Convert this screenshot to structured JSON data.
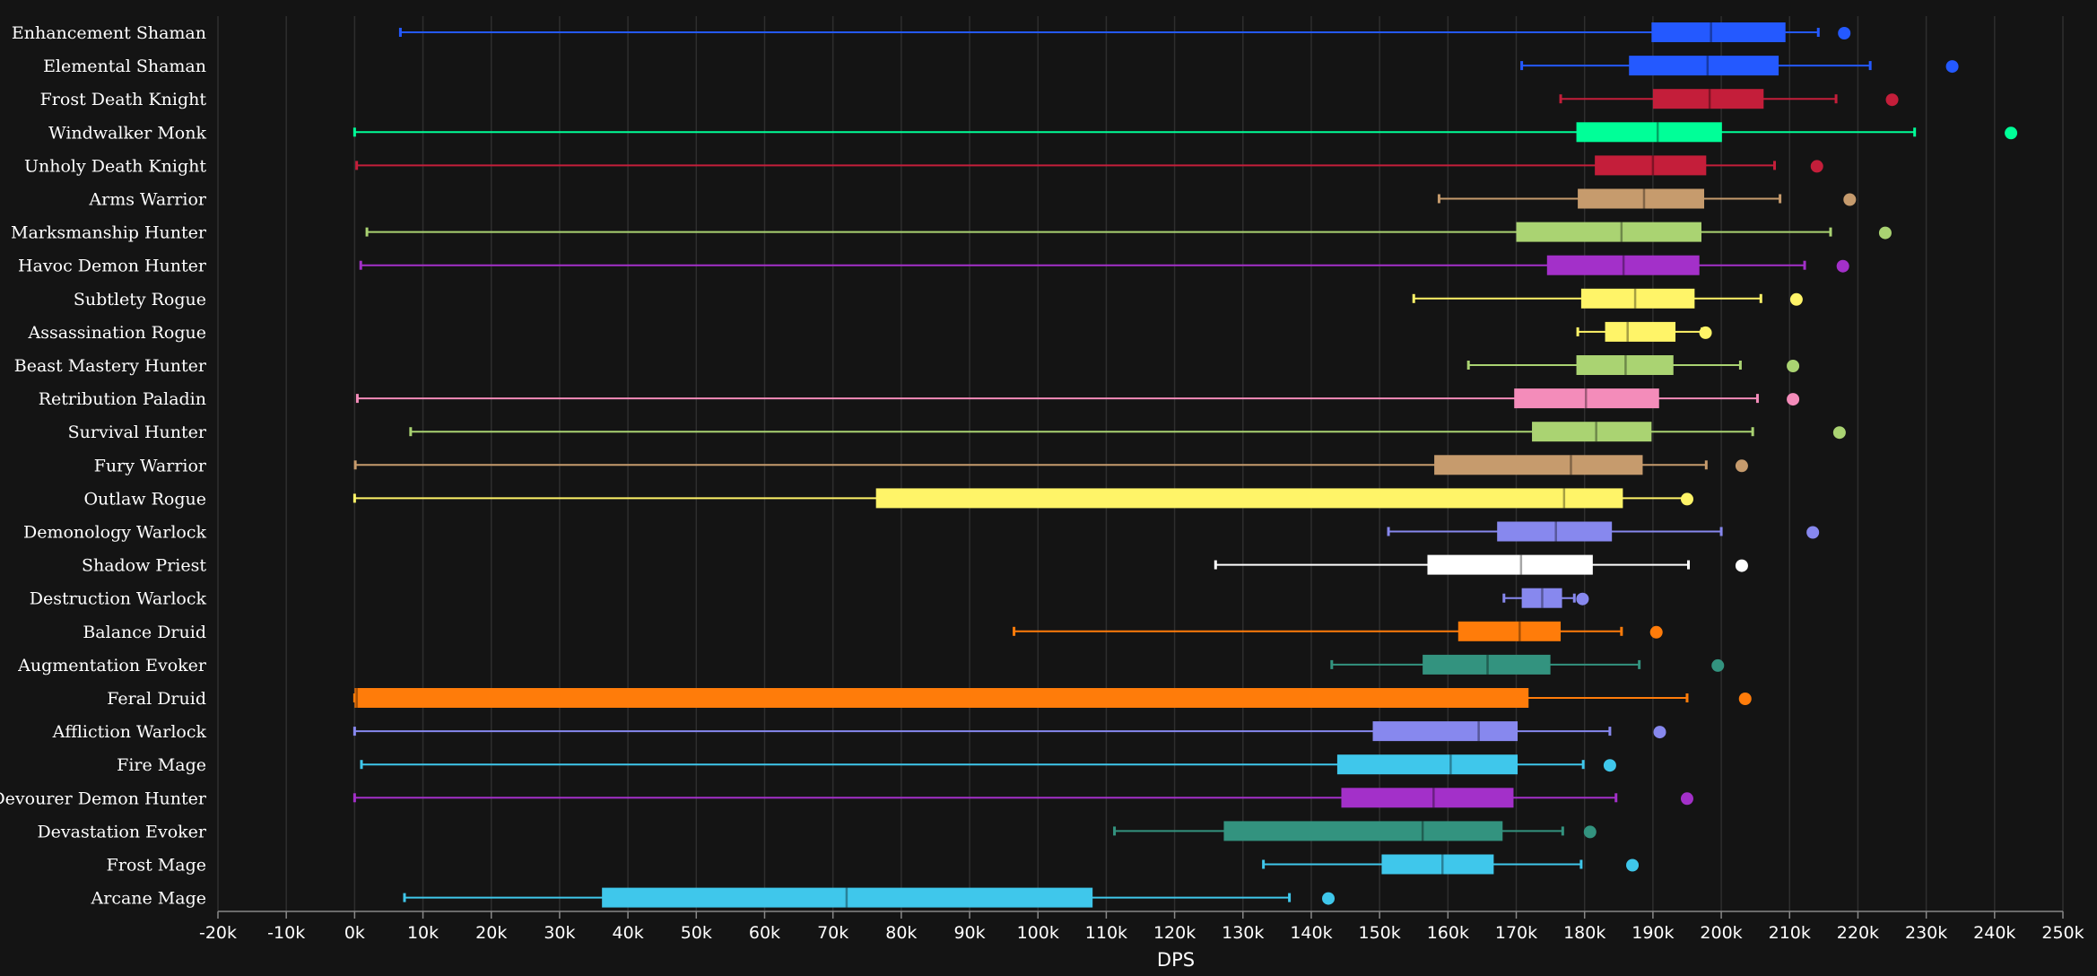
{
  "chart_data": {
    "type": "boxplot",
    "orientation": "horizontal",
    "xlabel": "DPS",
    "xlim": [
      -20000,
      250000
    ],
    "x_ticks": [
      -20000,
      -10000,
      0,
      10000,
      20000,
      30000,
      40000,
      50000,
      60000,
      70000,
      80000,
      90000,
      100000,
      110000,
      120000,
      130000,
      140000,
      150000,
      160000,
      170000,
      180000,
      190000,
      200000,
      210000,
      220000,
      230000,
      240000,
      250000
    ],
    "x_tick_labels": [
      "-20k",
      "-10k",
      "0k",
      "10k",
      "20k",
      "30k",
      "40k",
      "50k",
      "60k",
      "70k",
      "80k",
      "90k",
      "100k",
      "110k",
      "120k",
      "130k",
      "140k",
      "150k",
      "160k",
      "170k",
      "180k",
      "190k",
      "200k",
      "210k",
      "220k",
      "230k",
      "240k",
      "250k"
    ],
    "grid": true,
    "legend": false,
    "series": [
      {
        "name": "Enhancement Shaman",
        "color": "#2459ff",
        "min": 6700,
        "q1": 189800,
        "median": 198500,
        "q3": 209400,
        "max": 214200,
        "outlier": 218000
      },
      {
        "name": "Elemental Shaman",
        "color": "#2459ff",
        "min": 170800,
        "q1": 186500,
        "median": 198000,
        "q3": 208400,
        "max": 221800,
        "outlier": 233800
      },
      {
        "name": "Frost Death Knight",
        "color": "#c41e3a",
        "min": 176500,
        "q1": 190000,
        "median": 198300,
        "q3": 206200,
        "max": 216800,
        "outlier": 225000
      },
      {
        "name": "Windwalker Monk",
        "color": "#00ff98",
        "min": 0,
        "q1": 178800,
        "median": 190700,
        "q3": 200100,
        "max": 228300,
        "outlier": 242400
      },
      {
        "name": "Unholy Death Knight",
        "color": "#c41e3a",
        "min": 300,
        "q1": 181500,
        "median": 190000,
        "q3": 197800,
        "max": 207800,
        "outlier": 214000
      },
      {
        "name": "Arms Warrior",
        "color": "#c69b6d",
        "min": 158700,
        "q1": 179000,
        "median": 188700,
        "q3": 197500,
        "max": 208600,
        "outlier": 218800
      },
      {
        "name": "Marksmanship Hunter",
        "color": "#aad372",
        "min": 1800,
        "q1": 170000,
        "median": 185400,
        "q3": 197100,
        "max": 216000,
        "outlier": 224000
      },
      {
        "name": "Havoc Demon Hunter",
        "color": "#a330c9",
        "min": 900,
        "q1": 174500,
        "median": 185700,
        "q3": 196800,
        "max": 212200,
        "outlier": 217800
      },
      {
        "name": "Subtlety Rogue",
        "color": "#fff468",
        "min": 155000,
        "q1": 179500,
        "median": 187400,
        "q3": 196100,
        "max": 205800,
        "outlier": 211000
      },
      {
        "name": "Assassination Rogue",
        "color": "#fff468",
        "min": 179000,
        "q1": 183000,
        "median": 186300,
        "q3": 193300,
        "max": 197200,
        "outlier": 197700
      },
      {
        "name": "Beast Mastery Hunter",
        "color": "#aad372",
        "min": 163000,
        "q1": 178800,
        "median": 186000,
        "q3": 193000,
        "max": 202800,
        "outlier": 210500
      },
      {
        "name": "Retribution Paladin",
        "color": "#f48cba",
        "min": 400,
        "q1": 169700,
        "median": 180200,
        "q3": 190900,
        "max": 205300,
        "outlier": 210500
      },
      {
        "name": "Survival Hunter",
        "color": "#aad372",
        "min": 8200,
        "q1": 172300,
        "median": 181700,
        "q3": 189800,
        "max": 204600,
        "outlier": 217300
      },
      {
        "name": "Fury Warrior",
        "color": "#c69b6d",
        "min": 100,
        "q1": 158000,
        "median": 178000,
        "q3": 188500,
        "max": 197800,
        "outlier": 203000
      },
      {
        "name": "Outlaw Rogue",
        "color": "#fff468",
        "min": 0,
        "q1": 76300,
        "median": 177000,
        "q3": 185600,
        "max": 194800,
        "outlier": 195000
      },
      {
        "name": "Demonology Warlock",
        "color": "#8788ee",
        "min": 151300,
        "q1": 167200,
        "median": 175800,
        "q3": 184000,
        "max": 200000,
        "outlier": 213400
      },
      {
        "name": "Shadow Priest",
        "color": "#ffffff",
        "min": 126000,
        "q1": 157000,
        "median": 170700,
        "q3": 181200,
        "max": 195200,
        "outlier": 203000
      },
      {
        "name": "Destruction Warlock",
        "color": "#8788ee",
        "min": 168200,
        "q1": 170800,
        "median": 173800,
        "q3": 176700,
        "max": 178500,
        "outlier": 179700
      },
      {
        "name": "Balance Druid",
        "color": "#ff7c0a",
        "min": 96500,
        "q1": 161500,
        "median": 170500,
        "q3": 176500,
        "max": 185400,
        "outlier": 190500
      },
      {
        "name": "Augmentation Evoker",
        "color": "#33937f",
        "min": 143000,
        "q1": 156300,
        "median": 165800,
        "q3": 175000,
        "max": 188000,
        "outlier": 199500
      },
      {
        "name": "Feral Druid",
        "color": "#ff7c0a",
        "min": 0,
        "q1": 0,
        "median": 300,
        "q3": 171800,
        "max": 195000,
        "outlier": 203500
      },
      {
        "name": "Affliction Warlock",
        "color": "#8788ee",
        "min": 0,
        "q1": 149000,
        "median": 164500,
        "q3": 170200,
        "max": 183700,
        "outlier": 191000
      },
      {
        "name": "Fire Mage",
        "color": "#3fc7eb",
        "min": 1000,
        "q1": 143800,
        "median": 160400,
        "q3": 170200,
        "max": 179800,
        "outlier": 183700
      },
      {
        "name": "Devourer Demon Hunter",
        "color": "#a330c9",
        "min": 0,
        "q1": 144400,
        "median": 157900,
        "q3": 169600,
        "max": 184600,
        "outlier": 195000
      },
      {
        "name": "Devastation Evoker",
        "color": "#33937f",
        "min": 111200,
        "q1": 127200,
        "median": 156300,
        "q3": 168000,
        "max": 176800,
        "outlier": 180800
      },
      {
        "name": "Frost Mage",
        "color": "#3fc7eb",
        "min": 133000,
        "q1": 150300,
        "median": 159200,
        "q3": 166700,
        "max": 179500,
        "outlier": 187000
      },
      {
        "name": "Arcane Mage",
        "color": "#3fc7eb",
        "min": 7300,
        "q1": 36200,
        "median": 72000,
        "q3": 108000,
        "max": 136800,
        "outlier": 142500
      }
    ]
  }
}
